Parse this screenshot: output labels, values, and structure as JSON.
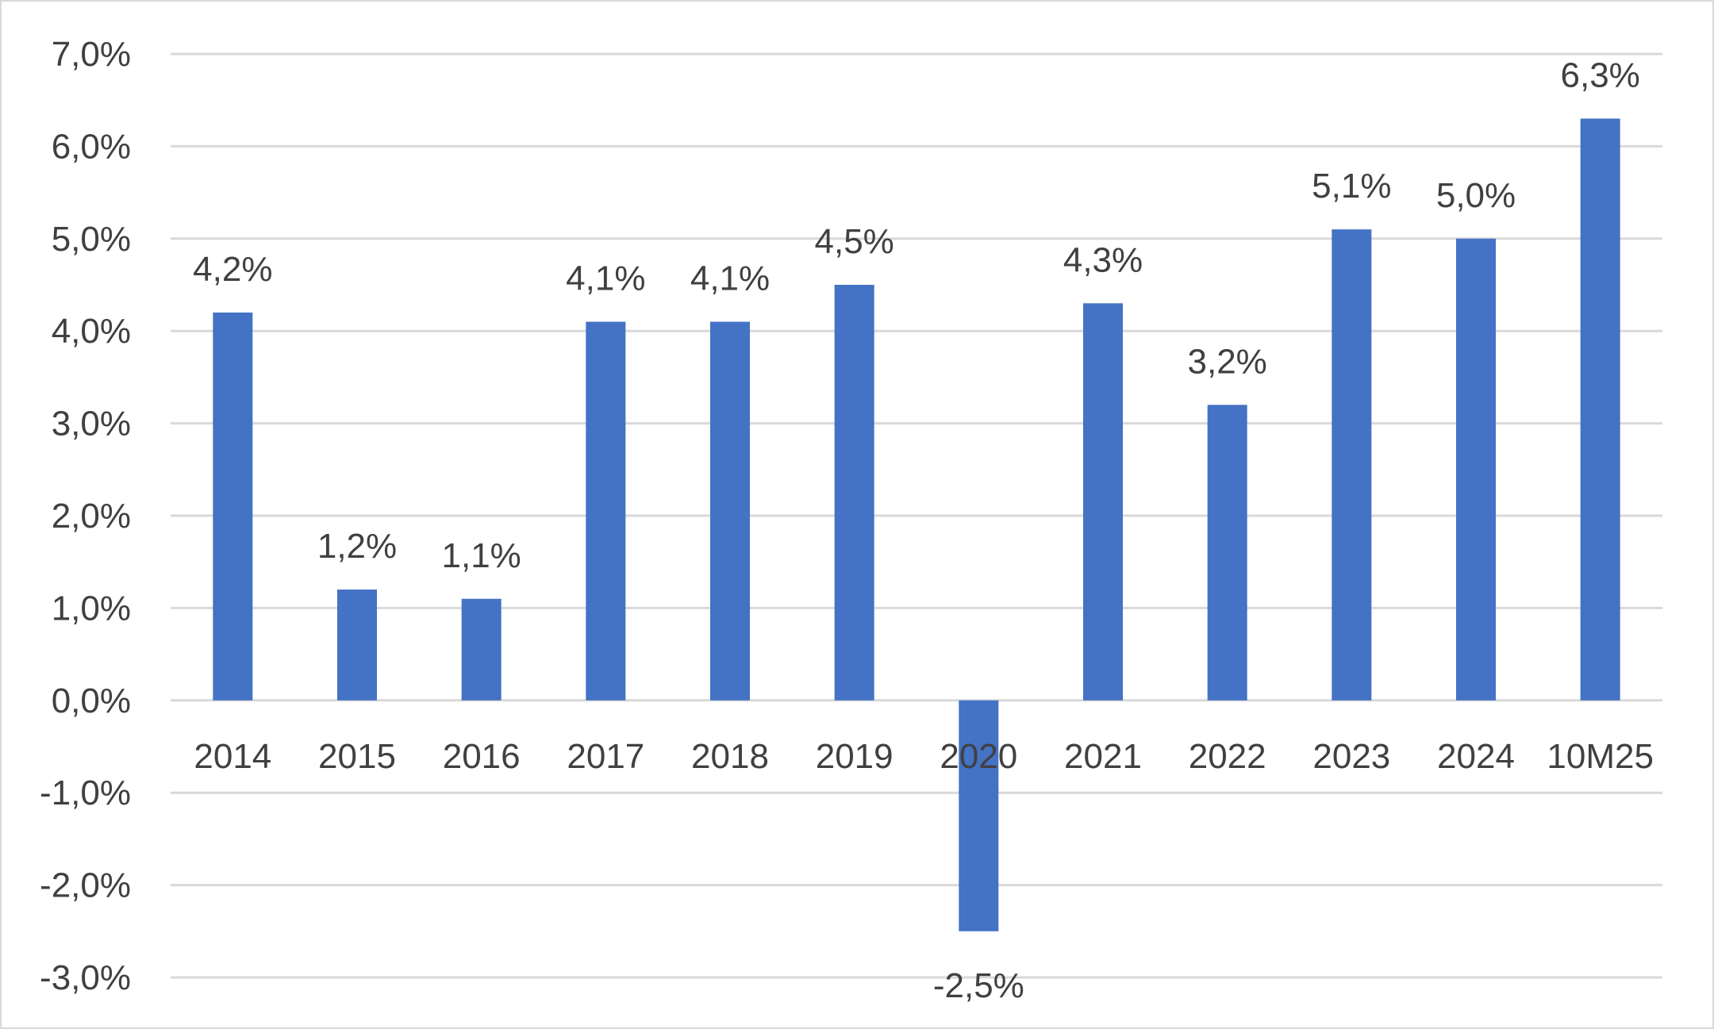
{
  "chart_data": {
    "type": "bar",
    "title": "",
    "xlabel": "",
    "ylabel": "",
    "categories": [
      "2014",
      "2015",
      "2016",
      "2017",
      "2018",
      "2019",
      "2020",
      "2021",
      "2022",
      "2023",
      "2024",
      "10M25"
    ],
    "values": [
      4.2,
      1.2,
      1.1,
      4.1,
      4.1,
      4.5,
      -2.5,
      4.3,
      3.2,
      5.1,
      5.0,
      6.3
    ],
    "data_labels": [
      "4,2%",
      "1,2%",
      "1,1%",
      "4,1%",
      "4,1%",
      "4,5%",
      "-2,5%",
      "4,3%",
      "3,2%",
      "5,1%",
      "5,0%",
      "6,3%"
    ],
    "ylim": [
      -3.0,
      7.0
    ],
    "yticks": [
      7,
      6,
      5,
      4,
      3,
      2,
      1,
      0,
      -1,
      -2,
      -3
    ],
    "ytick_labels": [
      "7,0%",
      "6,0%",
      "5,0%",
      "4,0%",
      "3,0%",
      "2,0%",
      "1,0%",
      "0,0%",
      "-1,0%",
      "-2,0%",
      "-3,0%"
    ],
    "grid": true,
    "legend": "none",
    "bar_color": "#4472c4",
    "grid_color": "#d9d9d9",
    "text_color": "#404040"
  }
}
